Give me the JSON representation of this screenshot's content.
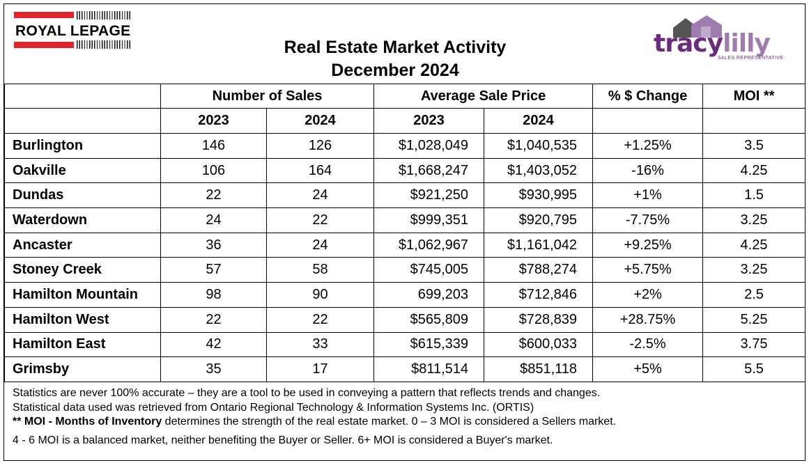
{
  "header": {
    "brand_left": "ROYAL LEPAGE",
    "title_line1": "Real Estate Market Activity",
    "title_line2": "December 2024",
    "brand_right_part1": "tracy",
    "brand_right_part2": "lilly",
    "brand_right_sub": "SALES REPRESENTATIVE",
    "colors": {
      "rlp_red": "#e0242b",
      "tracy_purple": "#6b2c7e",
      "lilly_purple": "#a07bb0"
    }
  },
  "table": {
    "group_headers": {
      "sales": "Number of Sales",
      "price": "Average Sale Price",
      "change": "% $ Change",
      "moi": "MOI **"
    },
    "year_headers": [
      "2023",
      "2024",
      "2023",
      "2024"
    ],
    "rows": [
      {
        "location": "Burlington",
        "sales_2023": "146",
        "sales_2024": "126",
        "price_2023": "$1,028,049",
        "price_2024": "$1,040,535",
        "change": "+1.25%",
        "moi": "3.5"
      },
      {
        "location": "Oakville",
        "sales_2023": "106",
        "sales_2024": "164",
        "price_2023": "$1,668,247",
        "price_2024": "$1,403,052",
        "change": "-16%",
        "moi": "4.25"
      },
      {
        "location": "Dundas",
        "sales_2023": "22",
        "sales_2024": "24",
        "price_2023": "$921,250",
        "price_2024": "$930,995",
        "change": "+1%",
        "moi": "1.5"
      },
      {
        "location": "Waterdown",
        "sales_2023": "24",
        "sales_2024": "22",
        "price_2023": "$999,351",
        "price_2024": "$920,795",
        "change": "-7.75%",
        "moi": "3.25"
      },
      {
        "location": "Ancaster",
        "sales_2023": "36",
        "sales_2024": "24",
        "price_2023": "$1,062,967",
        "price_2024": "$1,161,042",
        "change": "+9.25%",
        "moi": "4.25"
      },
      {
        "location": "Stoney Creek",
        "sales_2023": "57",
        "sales_2024": "58",
        "price_2023": "$745,005",
        "price_2024": "$788,274",
        "change": "+5.75%",
        "moi": "3.25"
      },
      {
        "location": "Hamilton Mountain",
        "sales_2023": "98",
        "sales_2024": "90",
        "price_2023": "699,203",
        "price_2024": "$712,846",
        "change": "+2%",
        "moi": "2.5"
      },
      {
        "location": "Hamilton West",
        "sales_2023": "22",
        "sales_2024": "22",
        "price_2023": "$565,809",
        "price_2024": "$728,839",
        "change": "+28.75%",
        "moi": "5.25"
      },
      {
        "location": "Hamilton East",
        "sales_2023": "42",
        "sales_2024": "33",
        "price_2023": "$615,339",
        "price_2024": "$600,033",
        "change": "-2.5%",
        "moi": "3.75"
      },
      {
        "location": "Grimsby",
        "sales_2023": "35",
        "sales_2024": "17",
        "price_2023": "$811,514",
        "price_2024": "$851,118",
        "change": "+5%",
        "moi": "5.5"
      }
    ]
  },
  "notes": {
    "line1": "Statistics are never 100% accurate – they are a tool to be used in conveying a pattern that reflects trends and changes.",
    "line2": "Statistical data used was retrieved from Ontario Regional Technology & Information Systems Inc. (ORTIS)",
    "line3_bold": "** MOI - Months of Inventory",
    "line3_rest": " determines the strength of the real estate market. 0 – 3 MOI is considered a Sellers market.",
    "line4": "4 - 6 MOI is a balanced market, neither benefiting the Buyer or Seller. 6+ MOI is considered a Buyer's market."
  }
}
